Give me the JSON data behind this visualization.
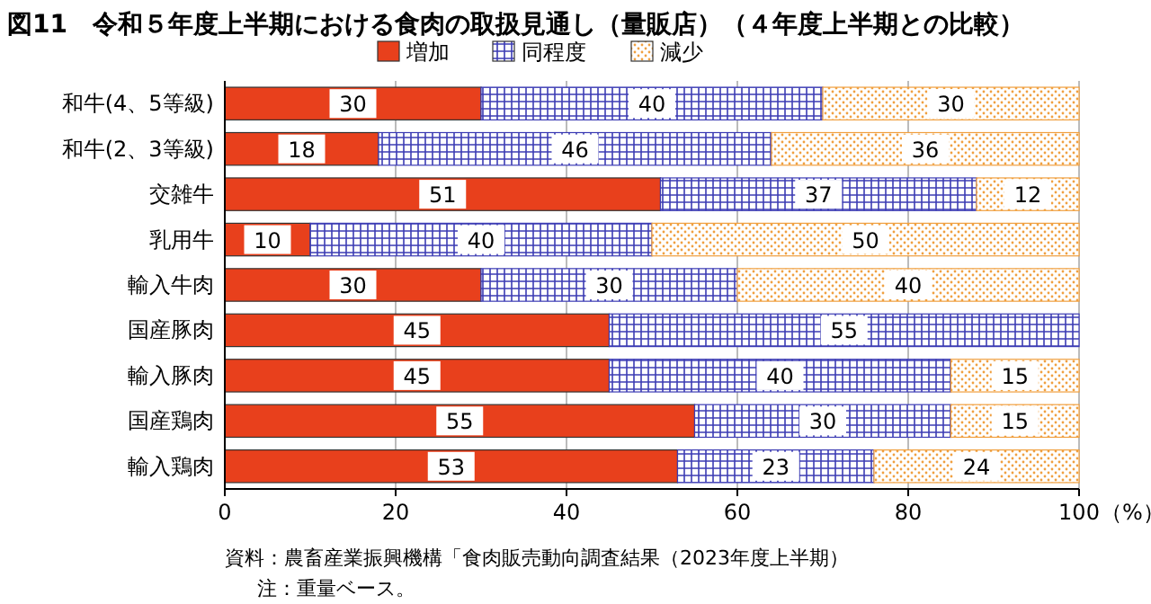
{
  "chart_data": {
    "type": "bar",
    "orientation": "horizontal",
    "stacked": true,
    "title": "図11　令和５年度上半期における食肉の取扱見通し（量販店）（４年度上半期との比較）",
    "categories": [
      "和牛(4、5等級)",
      "和牛(2、3等級)",
      "交雑牛",
      "乳用牛",
      "輸入牛肉",
      "国産豚肉",
      "輸入豚肉",
      "国産鶏肉",
      "輸入鶏肉"
    ],
    "series": [
      {
        "name": "増加",
        "color": "#e8401c",
        "values": [
          30,
          18,
          51,
          10,
          30,
          45,
          45,
          55,
          53
        ]
      },
      {
        "name": "同程度",
        "color": "#3c3cb4",
        "values": [
          40,
          46,
          37,
          40,
          30,
          55,
          40,
          30,
          23
        ]
      },
      {
        "name": "減少",
        "color": "#f0a040",
        "values": [
          30,
          36,
          12,
          50,
          40,
          null,
          15,
          15,
          24
        ]
      }
    ],
    "xlim": [
      0,
      100
    ],
    "xticks": [
      0,
      20,
      40,
      60,
      80,
      100
    ],
    "xlabel": "（%）",
    "grid": "x",
    "legend": "top",
    "data_labels": true,
    "annotations": [
      "資料：農畜産業振興機構「食肉販売動向調査結果（2023年度上半期）",
      "注：重量ベース。"
    ]
  }
}
